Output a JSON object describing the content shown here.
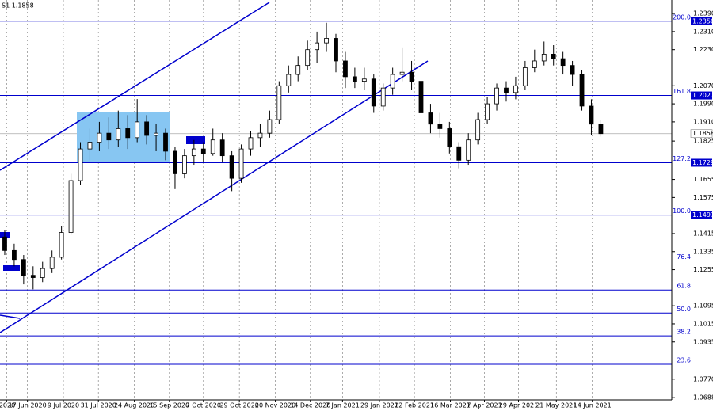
{
  "chart_data": {
    "type": "candlestick",
    "title": "S1 1.1858",
    "open": [
      1.14,
      1.134,
      1.13,
      1.123,
      1.122,
      1.126,
      1.131,
      1.142,
      1.165,
      1.179,
      1.182,
      1.186,
      1.183,
      1.188,
      1.184,
      1.191,
      1.185,
      1.186,
      1.178,
      1.168,
      1.176,
      1.179,
      1.177,
      1.183,
      1.176,
      1.166,
      1.179,
      1.184,
      1.186,
      1.192,
      1.207,
      1.212,
      1.216,
      1.223,
      1.226,
      1.228,
      1.218,
      1.211,
      1.209,
      1.21,
      1.198,
      1.206,
      1.212,
      1.213,
      1.209,
      1.195,
      1.19,
      1.188,
      1.18,
      1.174,
      1.183,
      1.192,
      1.199,
      1.206,
      1.204,
      1.207,
      1.215,
      1.218,
      1.221,
      1.219,
      1.216,
      1.212,
      1.198,
      1.19
    ],
    "high": [
      1.143,
      1.137,
      1.132,
      1.127,
      1.129,
      1.134,
      1.145,
      1.168,
      1.182,
      1.188,
      1.191,
      1.193,
      1.196,
      1.194,
      1.2011,
      1.194,
      1.19,
      1.188,
      1.18,
      1.179,
      1.183,
      1.182,
      1.188,
      1.186,
      1.178,
      1.181,
      1.187,
      1.19,
      1.196,
      1.209,
      1.216,
      1.22,
      1.227,
      1.231,
      1.2349,
      1.23,
      1.222,
      1.215,
      1.215,
      1.212,
      1.208,
      1.215,
      1.224,
      1.218,
      1.211,
      1.199,
      1.195,
      1.191,
      1.182,
      1.186,
      1.195,
      1.202,
      1.208,
      1.209,
      1.211,
      1.218,
      1.223,
      1.2266,
      1.225,
      1.222,
      1.218,
      1.214,
      1.201,
      1.192
    ],
    "low": [
      1.132,
      1.127,
      1.119,
      1.1168,
      1.12,
      1.124,
      1.13,
      1.141,
      1.163,
      1.174,
      1.178,
      1.179,
      1.18,
      1.179,
      1.182,
      1.181,
      1.178,
      1.174,
      1.1612,
      1.166,
      1.172,
      1.173,
      1.176,
      1.173,
      1.1603,
      1.164,
      1.176,
      1.18,
      1.184,
      1.19,
      1.204,
      1.209,
      1.214,
      1.217,
      1.222,
      1.213,
      1.206,
      1.206,
      1.205,
      1.195,
      1.196,
      1.203,
      1.209,
      1.205,
      1.192,
      1.186,
      1.184,
      1.177,
      1.1704,
      1.172,
      1.181,
      1.19,
      1.196,
      1.2,
      1.201,
      1.205,
      1.213,
      1.216,
      1.216,
      1.212,
      1.207,
      1.196,
      1.185,
      1.1845
    ],
    "close": [
      1.134,
      1.13,
      1.123,
      1.122,
      1.126,
      1.131,
      1.142,
      1.165,
      1.179,
      1.182,
      1.186,
      1.183,
      1.188,
      1.184,
      1.191,
      1.185,
      1.186,
      1.178,
      1.168,
      1.176,
      1.179,
      1.177,
      1.183,
      1.176,
      1.166,
      1.179,
      1.184,
      1.186,
      1.192,
      1.207,
      1.212,
      1.216,
      1.223,
      1.226,
      1.228,
      1.218,
      1.211,
      1.209,
      1.21,
      1.198,
      1.206,
      1.212,
      1.213,
      1.209,
      1.195,
      1.19,
      1.188,
      1.18,
      1.174,
      1.183,
      1.192,
      1.199,
      1.206,
      1.204,
      1.207,
      1.215,
      1.218,
      1.221,
      1.219,
      1.216,
      1.212,
      1.198,
      1.19,
      1.1858
    ],
    "xlim": [
      -0.5,
      70.5
    ],
    "ylim": [
      1.0678,
      1.245
    ],
    "xticks": [
      {
        "value": 0.2,
        "label": "2020"
      },
      {
        "value": 2.4,
        "label": "17 Jun 2020"
      },
      {
        "value": 6.2,
        "label": "9 Jul 2020"
      },
      {
        "value": 9.9,
        "label": "31 Jul 2020"
      },
      {
        "value": 13.7,
        "label": "24 Aug 2020"
      },
      {
        "value": 17.4,
        "label": "15 Sep 2020"
      },
      {
        "value": 21.0,
        "label": "7 Oct 2020"
      },
      {
        "value": 24.8,
        "label": "29 Oct 2020"
      },
      {
        "value": 28.6,
        "label": "20 Nov 2020"
      },
      {
        "value": 32.3,
        "label": "14 Dec 2020"
      },
      {
        "value": 35.7,
        "label": "7 Jan 2021"
      },
      {
        "value": 39.6,
        "label": "29 Jan 2021"
      },
      {
        "value": 43.3,
        "label": "22 Feb 2021"
      },
      {
        "value": 47.1,
        "label": "16 Mar 2021"
      },
      {
        "value": 50.7,
        "label": "7 Apr 2021"
      },
      {
        "value": 54.3,
        "label": "29 Apr 2021"
      },
      {
        "value": 58.3,
        "label": "21 May 2021"
      },
      {
        "value": 62.1,
        "label": "14 Jun 2021"
      }
    ],
    "yticks": [
      {
        "value": 1.239,
        "label": "1.2390"
      },
      {
        "value": 1.231,
        "label": "1.2310"
      },
      {
        "value": 1.223,
        "label": "1.2230"
      },
      {
        "value": 1.207,
        "label": "1.2070"
      },
      {
        "value": 1.199,
        "label": "1.1990"
      },
      {
        "value": 1.191,
        "label": "1.1910"
      },
      {
        "value": 1.1825,
        "label": "1.1825"
      },
      {
        "value": 1.1655,
        "label": "1.1655"
      },
      {
        "value": 1.1575,
        "label": "1.1575"
      },
      {
        "value": 1.1415,
        "label": "1.1415"
      },
      {
        "value": 1.1335,
        "label": "1.1335"
      },
      {
        "value": 1.1255,
        "label": "1.1255"
      },
      {
        "value": 1.1095,
        "label": "1.1095"
      },
      {
        "value": 1.1015,
        "label": "1.1015"
      },
      {
        "value": 1.0935,
        "label": "1.0935"
      },
      {
        "value": 1.077,
        "label": "1.0770"
      },
      {
        "value": 1.0688,
        "label": "1.0688"
      }
    ],
    "levels": [
      {
        "label": "200.0",
        "value": 1.2356,
        "boxed": true
      },
      {
        "label": "161.8",
        "value": 1.2027,
        "boxed": true
      },
      {
        "label": "127.2",
        "value": 1.1729,
        "boxed": true
      },
      {
        "label": "100.0",
        "value": 1.1497,
        "boxed": true
      },
      {
        "label": "76.4",
        "value": 1.1294,
        "boxed": false
      },
      {
        "label": "61.8",
        "value": 1.1165,
        "boxed": false
      },
      {
        "label": "50.0",
        "value": 1.1063,
        "boxed": false
      },
      {
        "label": "38.2",
        "value": 1.0962,
        "boxed": false
      },
      {
        "label": "23.6",
        "value": 1.0836,
        "boxed": false
      }
    ],
    "level_color": "#0000cd",
    "current": 1.1858,
    "grid": true
  }
}
